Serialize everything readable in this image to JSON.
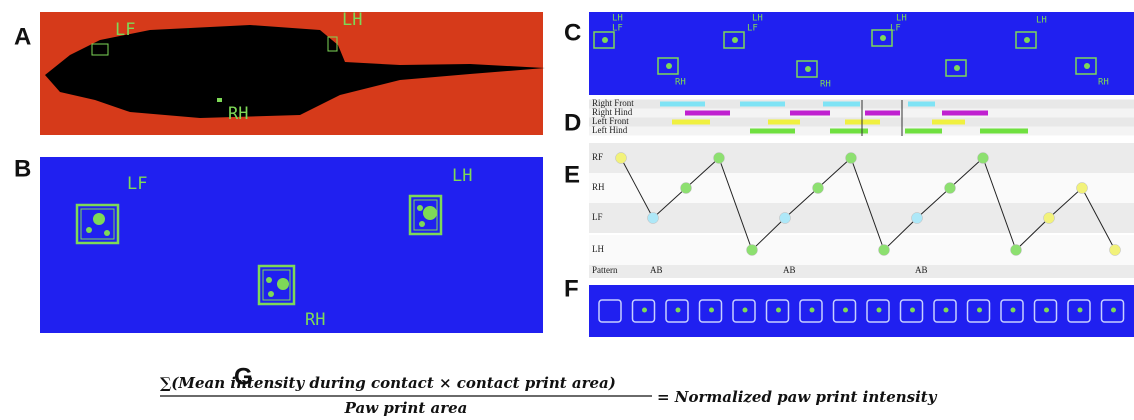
{
  "panels": {
    "a": {
      "letter": "A",
      "labels": [
        "LF",
        "LH",
        "RH"
      ]
    },
    "b": {
      "letter": "B",
      "labels": [
        "LF",
        "LH",
        "RH"
      ]
    },
    "c": {
      "letter": "C",
      "labels": [
        "LH",
        "LF",
        "LH",
        "LF",
        "RH",
        "LH",
        "LF",
        "RH",
        "LH",
        "RH"
      ]
    },
    "d": {
      "letter": "D",
      "rows": [
        "Right Front",
        "Right Hind",
        "Left Front",
        "Left Hind"
      ]
    },
    "e": {
      "letter": "E",
      "rows": [
        "RF",
        "RH",
        "LF",
        "LH"
      ],
      "pattern_label": "Pattern",
      "patterns": [
        "AB",
        "AB",
        "AB"
      ]
    },
    "f": {
      "letter": "F"
    },
    "g": {
      "letter": "G",
      "numerator": "∑(Mean intensity during contact × contact print area)",
      "denominator": "Paw print area",
      "result": "= Normalized paw print intensity"
    }
  }
}
